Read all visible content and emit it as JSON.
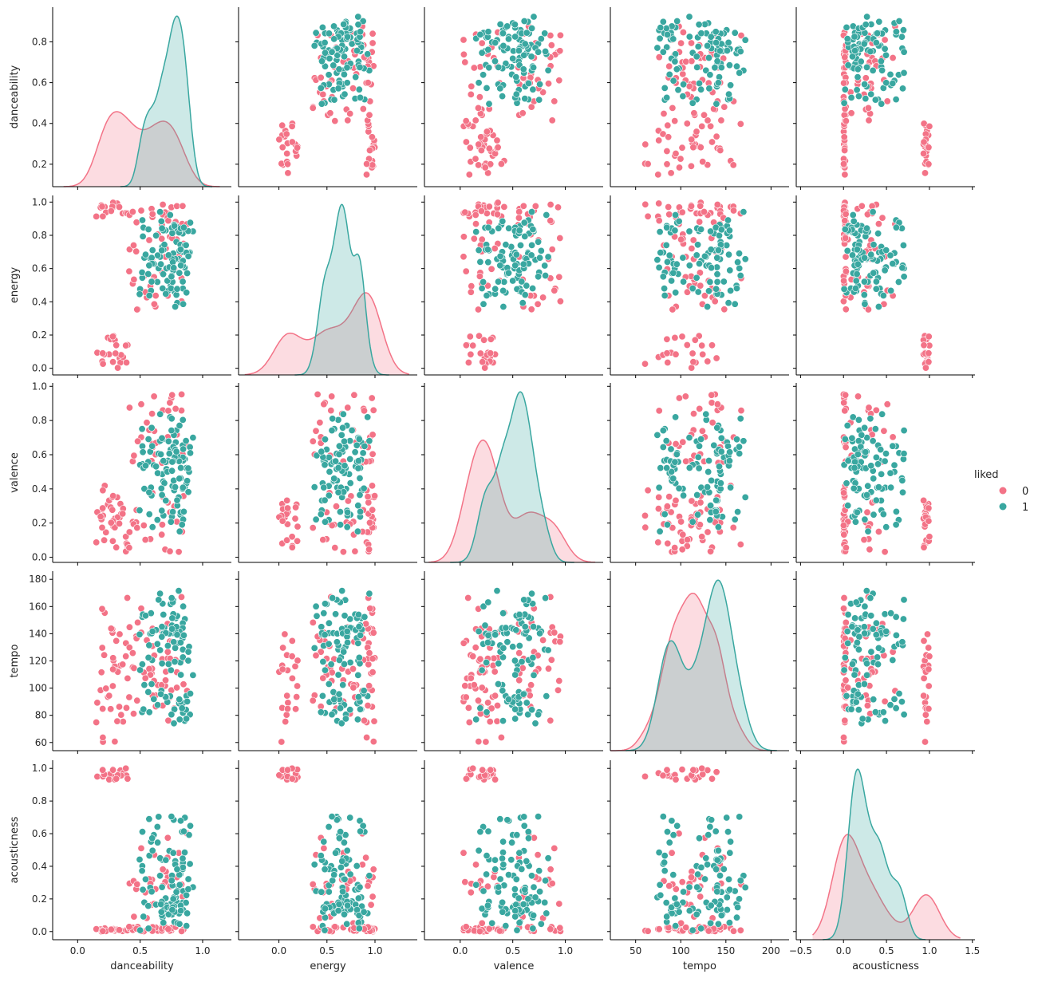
{
  "chart_data": {
    "type": "scatter",
    "subtype": "pairplot",
    "title": "",
    "variables": [
      "danceability",
      "energy",
      "valence",
      "tempo",
      "acousticness"
    ],
    "hue": "liked",
    "legend": {
      "title": "liked",
      "placement": "center-right",
      "entries": [
        {
          "label": "0",
          "color": "#f37387"
        },
        {
          "label": "1",
          "color": "#39a7a0"
        }
      ]
    },
    "diagonal": "kde",
    "axes": {
      "danceability": {
        "xlim": [
          -0.2,
          1.23
        ],
        "ylim": [
          0.09,
          0.97
        ],
        "xticks": [
          0.0,
          0.5,
          1.0
        ],
        "yticks": [
          0.2,
          0.4,
          0.6,
          0.8
        ]
      },
      "energy": {
        "xlim": [
          -0.42,
          1.44
        ],
        "ylim": [
          -0.04,
          1.04
        ],
        "xticks": [
          0.0,
          0.5,
          1.0
        ],
        "yticks": [
          0.0,
          0.2,
          0.4,
          0.6,
          0.8,
          1.0
        ]
      },
      "valence": {
        "xlim": [
          -0.34,
          1.36
        ],
        "ylim": [
          -0.03,
          1.02
        ],
        "xticks": [
          0.0,
          0.5,
          1.0
        ],
        "yticks": [
          0.0,
          0.2,
          0.4,
          0.6,
          0.8,
          1.0
        ]
      },
      "tempo": {
        "xlim": [
          22,
          220
        ],
        "ylim": [
          54,
          186
        ],
        "xticks": [
          50,
          100,
          150,
          200
        ],
        "yticks": [
          60,
          80,
          100,
          120,
          140,
          160,
          180
        ]
      },
      "acousticness": {
        "xlim": [
          -0.55,
          1.53
        ],
        "ylim": [
          -0.05,
          1.05
        ],
        "xticks": [
          -0.5,
          0.0,
          0.5,
          1.0,
          1.5
        ],
        "yticks": [
          0.0,
          0.2,
          0.4,
          0.6,
          0.8,
          1.0
        ]
      }
    },
    "kde_peaks_approx": {
      "danceability": {
        "0": [
          0.28,
          0.72
        ],
        "1": [
          0.8
        ]
      },
      "energy": {
        "0": [
          0.06,
          0.92
        ],
        "1": [
          0.65
        ]
      },
      "valence": {
        "0": [
          0.18,
          0.87
        ],
        "1": [
          0.63
        ]
      },
      "tempo": {
        "0": [
          107
        ],
        "1": [
          145
        ]
      },
      "acousticness": {
        "0": [
          0.08,
          0.96
        ],
        "1": [
          0.12
        ]
      }
    },
    "groups": {
      "0": {
        "count": 95,
        "clusters": [
          {
            "n": 22,
            "danceability": [
              0.12,
              0.45
            ],
            "energy": [
              0.0,
              0.2
            ],
            "valence": [
              0.03,
              0.35
            ],
            "tempo": [
              60,
              140
            ],
            "acousticness": [
              0.93,
              1.0
            ]
          },
          {
            "n": 18,
            "danceability": [
              0.12,
              0.42
            ],
            "energy": [
              0.9,
              1.0
            ],
            "valence": [
              0.03,
              0.5
            ],
            "tempo": [
              60,
              180
            ],
            "acousticness": [
              0.0,
              0.02
            ]
          },
          {
            "n": 55,
            "danceability": [
              0.4,
              0.88
            ],
            "energy": [
              0.35,
              1.0
            ],
            "valence": [
              0.03,
              0.98
            ],
            "tempo": [
              70,
              175
            ],
            "acousticness": [
              0.0,
              0.78
            ]
          }
        ]
      },
      "1": {
        "count": 100,
        "clusters": [
          {
            "n": 100,
            "danceability": [
              0.45,
              0.95
            ],
            "energy": [
              0.33,
              0.97
            ],
            "valence": [
              0.08,
              0.91
            ],
            "tempo": [
              73,
              180
            ],
            "acousticness": [
              0.0,
              0.84
            ]
          }
        ]
      }
    }
  }
}
